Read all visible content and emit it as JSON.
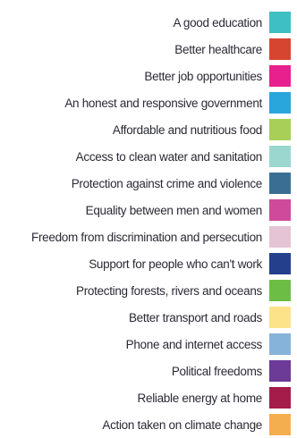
{
  "legend": {
    "items": [
      {
        "label": "A good education",
        "color": "#3ebfc4"
      },
      {
        "label": "Better healthcare",
        "color": "#d64530"
      },
      {
        "label": "Better job opportunities",
        "color": "#e8208d"
      },
      {
        "label": "An honest and responsive government",
        "color": "#29a6dc"
      },
      {
        "label": "Affordable and nutritious food",
        "color": "#a8cf58"
      },
      {
        "label": "Access to clean water and sanitation",
        "color": "#9bd6cf"
      },
      {
        "label": "Protection against crime and violence",
        "color": "#3a6f93"
      },
      {
        "label": "Equality between men and women",
        "color": "#cf4a9b"
      },
      {
        "label": "Freedom from discrimination and persecution",
        "color": "#e5c4d5"
      },
      {
        "label": "Support for people who can't work",
        "color": "#243f8c"
      },
      {
        "label": "Protecting forests, rivers and oceans",
        "color": "#6cbd45"
      },
      {
        "label": "Better transport and roads",
        "color": "#fce38a"
      },
      {
        "label": "Phone and internet access",
        "color": "#86b3da"
      },
      {
        "label": "Political freedoms",
        "color": "#6b3b97"
      },
      {
        "label": "Reliable energy at home",
        "color": "#a51c4a"
      },
      {
        "label": "Action taken on climate change",
        "color": "#f5ae4f"
      }
    ]
  }
}
